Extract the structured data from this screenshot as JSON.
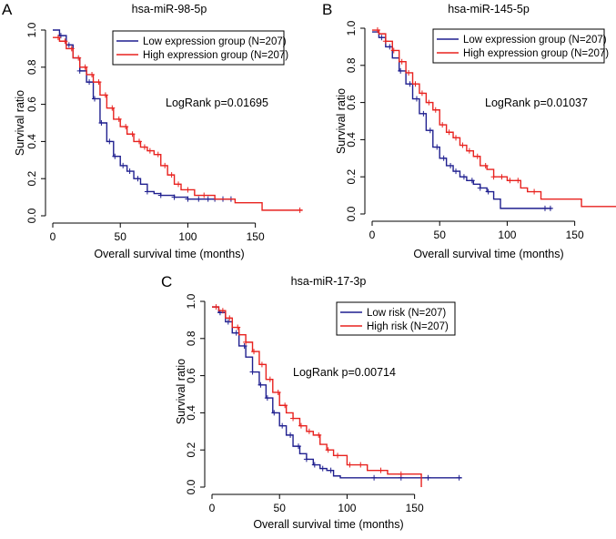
{
  "figure": {
    "panels": [
      {
        "letter": "A",
        "title": "hsa-miR-98-5p",
        "xlabel": "Overall survival time (months)",
        "ylabel": "Survival ratio",
        "logrank": "LogRank p=0.01695",
        "legend": [
          {
            "label": "Low expression group (N=207)",
            "color": "#1f1f8f"
          },
          {
            "label": "High expression group (N=207)",
            "color": "#e8221f"
          }
        ]
      },
      {
        "letter": "B",
        "title": "hsa-miR-145-5p",
        "xlabel": "Overall survival time (months)",
        "ylabel": "Survival ratio",
        "logrank": "LogRank p=0.01037",
        "legend": [
          {
            "label": "Low expression group (N=207)",
            "color": "#1f1f8f"
          },
          {
            "label": "High expression group (N=207)",
            "color": "#e8221f"
          }
        ]
      },
      {
        "letter": "C",
        "title": "hsa-miR-17-3p",
        "xlabel": "Overall survival time (months)",
        "ylabel": "Survival ratio",
        "logrank": "LogRank p=0.00714",
        "legend": [
          {
            "label": "Low risk (N=207)",
            "color": "#1f1f8f"
          },
          {
            "label": "High risk (N=207)",
            "color": "#e8221f"
          }
        ]
      }
    ]
  },
  "chart_data": [
    {
      "type": "line",
      "subtype": "kaplan-meier-step",
      "title": "hsa-miR-98-5p",
      "xlabel": "Overall survival time (months)",
      "ylabel": "Survival ratio",
      "xlim": [
        0,
        190
      ],
      "ylim": [
        0,
        1.0
      ],
      "xticks": [
        0,
        50,
        100,
        150
      ],
      "yticks": [
        0.0,
        0.2,
        0.4,
        0.6,
        0.8,
        1.0
      ],
      "annotation": "LogRank p=0.01695",
      "series": [
        {
          "name": "Low expression group (N=207)",
          "color": "#1f1f8f",
          "x": [
            0,
            5,
            10,
            15,
            20,
            25,
            30,
            35,
            40,
            45,
            50,
            55,
            60,
            65,
            70,
            75,
            80,
            90,
            100,
            133
          ],
          "y": [
            1.0,
            0.97,
            0.92,
            0.85,
            0.78,
            0.72,
            0.63,
            0.5,
            0.4,
            0.32,
            0.27,
            0.24,
            0.2,
            0.17,
            0.13,
            0.12,
            0.11,
            0.1,
            0.09,
            0.09
          ],
          "censor_x": [
            6,
            12,
            20,
            27,
            31,
            36,
            42,
            46,
            52,
            57,
            63,
            70,
            80,
            90,
            100,
            108,
            115,
            120,
            126,
            132
          ]
        },
        {
          "name": "High expression group (N=207)",
          "color": "#e8221f",
          "x": [
            0,
            5,
            10,
            15,
            20,
            25,
            30,
            35,
            40,
            45,
            50,
            55,
            60,
            65,
            70,
            75,
            80,
            85,
            90,
            95,
            105,
            120,
            135,
            150,
            155,
            185
          ],
          "y": [
            0.96,
            0.94,
            0.9,
            0.85,
            0.8,
            0.76,
            0.72,
            0.65,
            0.58,
            0.52,
            0.48,
            0.44,
            0.4,
            0.37,
            0.35,
            0.33,
            0.27,
            0.22,
            0.17,
            0.14,
            0.11,
            0.09,
            0.07,
            0.07,
            0.03,
            0.03
          ],
          "censor_x": [
            4,
            9,
            14,
            19,
            24,
            29,
            34,
            39,
            44,
            49,
            54,
            59,
            64,
            68,
            72,
            78,
            83,
            88,
            93,
            100,
            112,
            183
          ]
        }
      ]
    },
    {
      "type": "line",
      "subtype": "kaplan-meier-step",
      "title": "hsa-miR-145-5p",
      "xlabel": "Overall survival time (months)",
      "ylabel": "Survival ratio",
      "xlim": [
        0,
        190
      ],
      "ylim": [
        0,
        1.0
      ],
      "xticks": [
        0,
        50,
        100,
        150
      ],
      "yticks": [
        0.0,
        0.2,
        0.4,
        0.6,
        0.8,
        1.0
      ],
      "annotation": "LogRank p=0.01037",
      "series": [
        {
          "name": "Low expression group (N=207)",
          "color": "#1f1f8f",
          "x": [
            0,
            5,
            10,
            15,
            20,
            25,
            30,
            35,
            40,
            45,
            50,
            55,
            60,
            65,
            70,
            75,
            80,
            85,
            90,
            95,
            133
          ],
          "y": [
            0.98,
            0.95,
            0.9,
            0.84,
            0.77,
            0.7,
            0.62,
            0.54,
            0.45,
            0.36,
            0.3,
            0.26,
            0.23,
            0.2,
            0.18,
            0.16,
            0.14,
            0.12,
            0.08,
            0.03,
            0.03
          ],
          "censor_x": [
            7,
            13,
            21,
            28,
            33,
            38,
            43,
            48,
            53,
            58,
            62,
            68,
            74,
            80,
            86,
            128,
            132
          ]
        },
        {
          "name": "High expression group (N=207)",
          "color": "#e8221f",
          "x": [
            0,
            5,
            10,
            15,
            20,
            25,
            30,
            35,
            40,
            45,
            50,
            55,
            60,
            65,
            70,
            75,
            80,
            85,
            90,
            100,
            110,
            115,
            125,
            155,
            185
          ],
          "y": [
            0.99,
            0.97,
            0.93,
            0.88,
            0.82,
            0.76,
            0.7,
            0.65,
            0.6,
            0.56,
            0.48,
            0.44,
            0.41,
            0.37,
            0.34,
            0.31,
            0.26,
            0.24,
            0.2,
            0.18,
            0.14,
            0.12,
            0.08,
            0.04,
            0.04
          ],
          "censor_x": [
            4,
            10,
            16,
            22,
            27,
            32,
            37,
            42,
            47,
            52,
            57,
            62,
            67,
            72,
            78,
            84,
            90,
            96,
            102,
            108,
            120,
            183
          ]
        }
      ]
    },
    {
      "type": "line",
      "subtype": "kaplan-meier-step",
      "title": "hsa-miR-17-3p",
      "xlabel": "Overall survival time (months)",
      "ylabel": "Survival ratio",
      "xlim": [
        0,
        190
      ],
      "ylim": [
        0,
        1.0
      ],
      "xticks": [
        0,
        50,
        100,
        150
      ],
      "yticks": [
        0.0,
        0.2,
        0.4,
        0.6,
        0.8,
        1.0
      ],
      "annotation": "LogRank p=0.00714",
      "series": [
        {
          "name": "Low risk (N=207)",
          "color": "#1f1f8f",
          "x": [
            0,
            5,
            10,
            15,
            20,
            25,
            30,
            35,
            40,
            45,
            50,
            55,
            60,
            65,
            70,
            75,
            80,
            85,
            90,
            95,
            185
          ],
          "y": [
            0.97,
            0.94,
            0.89,
            0.83,
            0.76,
            0.7,
            0.62,
            0.55,
            0.48,
            0.4,
            0.33,
            0.28,
            0.22,
            0.18,
            0.15,
            0.12,
            0.1,
            0.09,
            0.06,
            0.05,
            0.05
          ],
          "censor_x": [
            6,
            12,
            18,
            24,
            30,
            36,
            41,
            46,
            52,
            58,
            64,
            70,
            76,
            82,
            88,
            120,
            140,
            160,
            183
          ]
        },
        {
          "name": "High risk (N=207)",
          "color": "#e8221f",
          "x": [
            0,
            5,
            10,
            15,
            20,
            25,
            30,
            35,
            40,
            45,
            50,
            55,
            60,
            65,
            70,
            75,
            80,
            85,
            90,
            100,
            115,
            130,
            155
          ],
          "y": [
            0.97,
            0.95,
            0.91,
            0.86,
            0.82,
            0.78,
            0.73,
            0.66,
            0.58,
            0.51,
            0.44,
            0.4,
            0.37,
            0.33,
            0.3,
            0.28,
            0.23,
            0.2,
            0.17,
            0.12,
            0.09,
            0.07,
            0.0
          ],
          "censor_x": [
            3,
            8,
            13,
            19,
            25,
            31,
            37,
            43,
            49,
            54,
            60,
            66,
            72,
            79,
            86,
            93,
            102,
            110,
            125,
            140
          ]
        }
      ]
    }
  ]
}
